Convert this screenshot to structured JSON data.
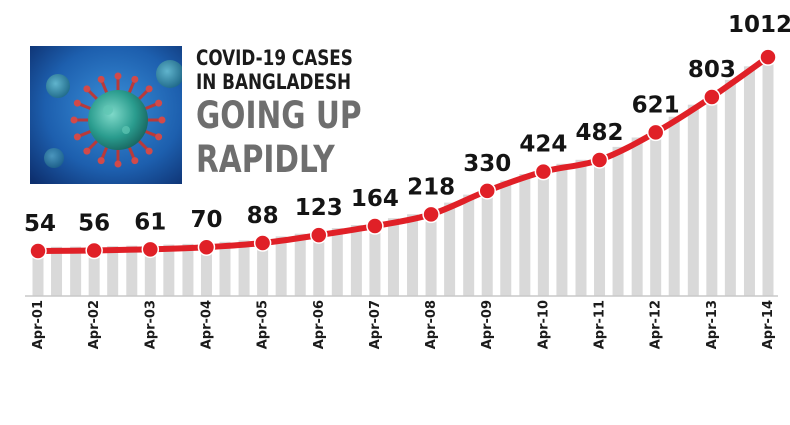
{
  "title": {
    "line1": "COVID-19 CASES",
    "line2": "IN BANGLADESH",
    "line3": "GOING UP",
    "line4": "RAPIDLY"
  },
  "colors": {
    "line": "#e02027",
    "marker": "#e02027",
    "bars": "#d9d9d9",
    "baseline": "#c9c9c9",
    "text": "#141414",
    "subtitle": "#6e6e6e"
  },
  "image": {
    "icon": "coronavirus-illustration"
  },
  "chart_data": {
    "type": "line",
    "categories": [
      "Apr-01",
      "Apr-02",
      "Apr-03",
      "Apr-04",
      "Apr-05",
      "Apr-06",
      "Apr-07",
      "Apr-08",
      "Apr-09",
      "Apr-10",
      "Apr-11",
      "Apr-12",
      "Apr-13",
      "Apr-14"
    ],
    "values": [
      54,
      56,
      61,
      70,
      88,
      123,
      164,
      218,
      330,
      424,
      482,
      621,
      803,
      1012
    ],
    "ylim": [
      0,
      1050
    ],
    "grid": false,
    "legend": "none",
    "data_labels": true,
    "background_bars": true
  }
}
